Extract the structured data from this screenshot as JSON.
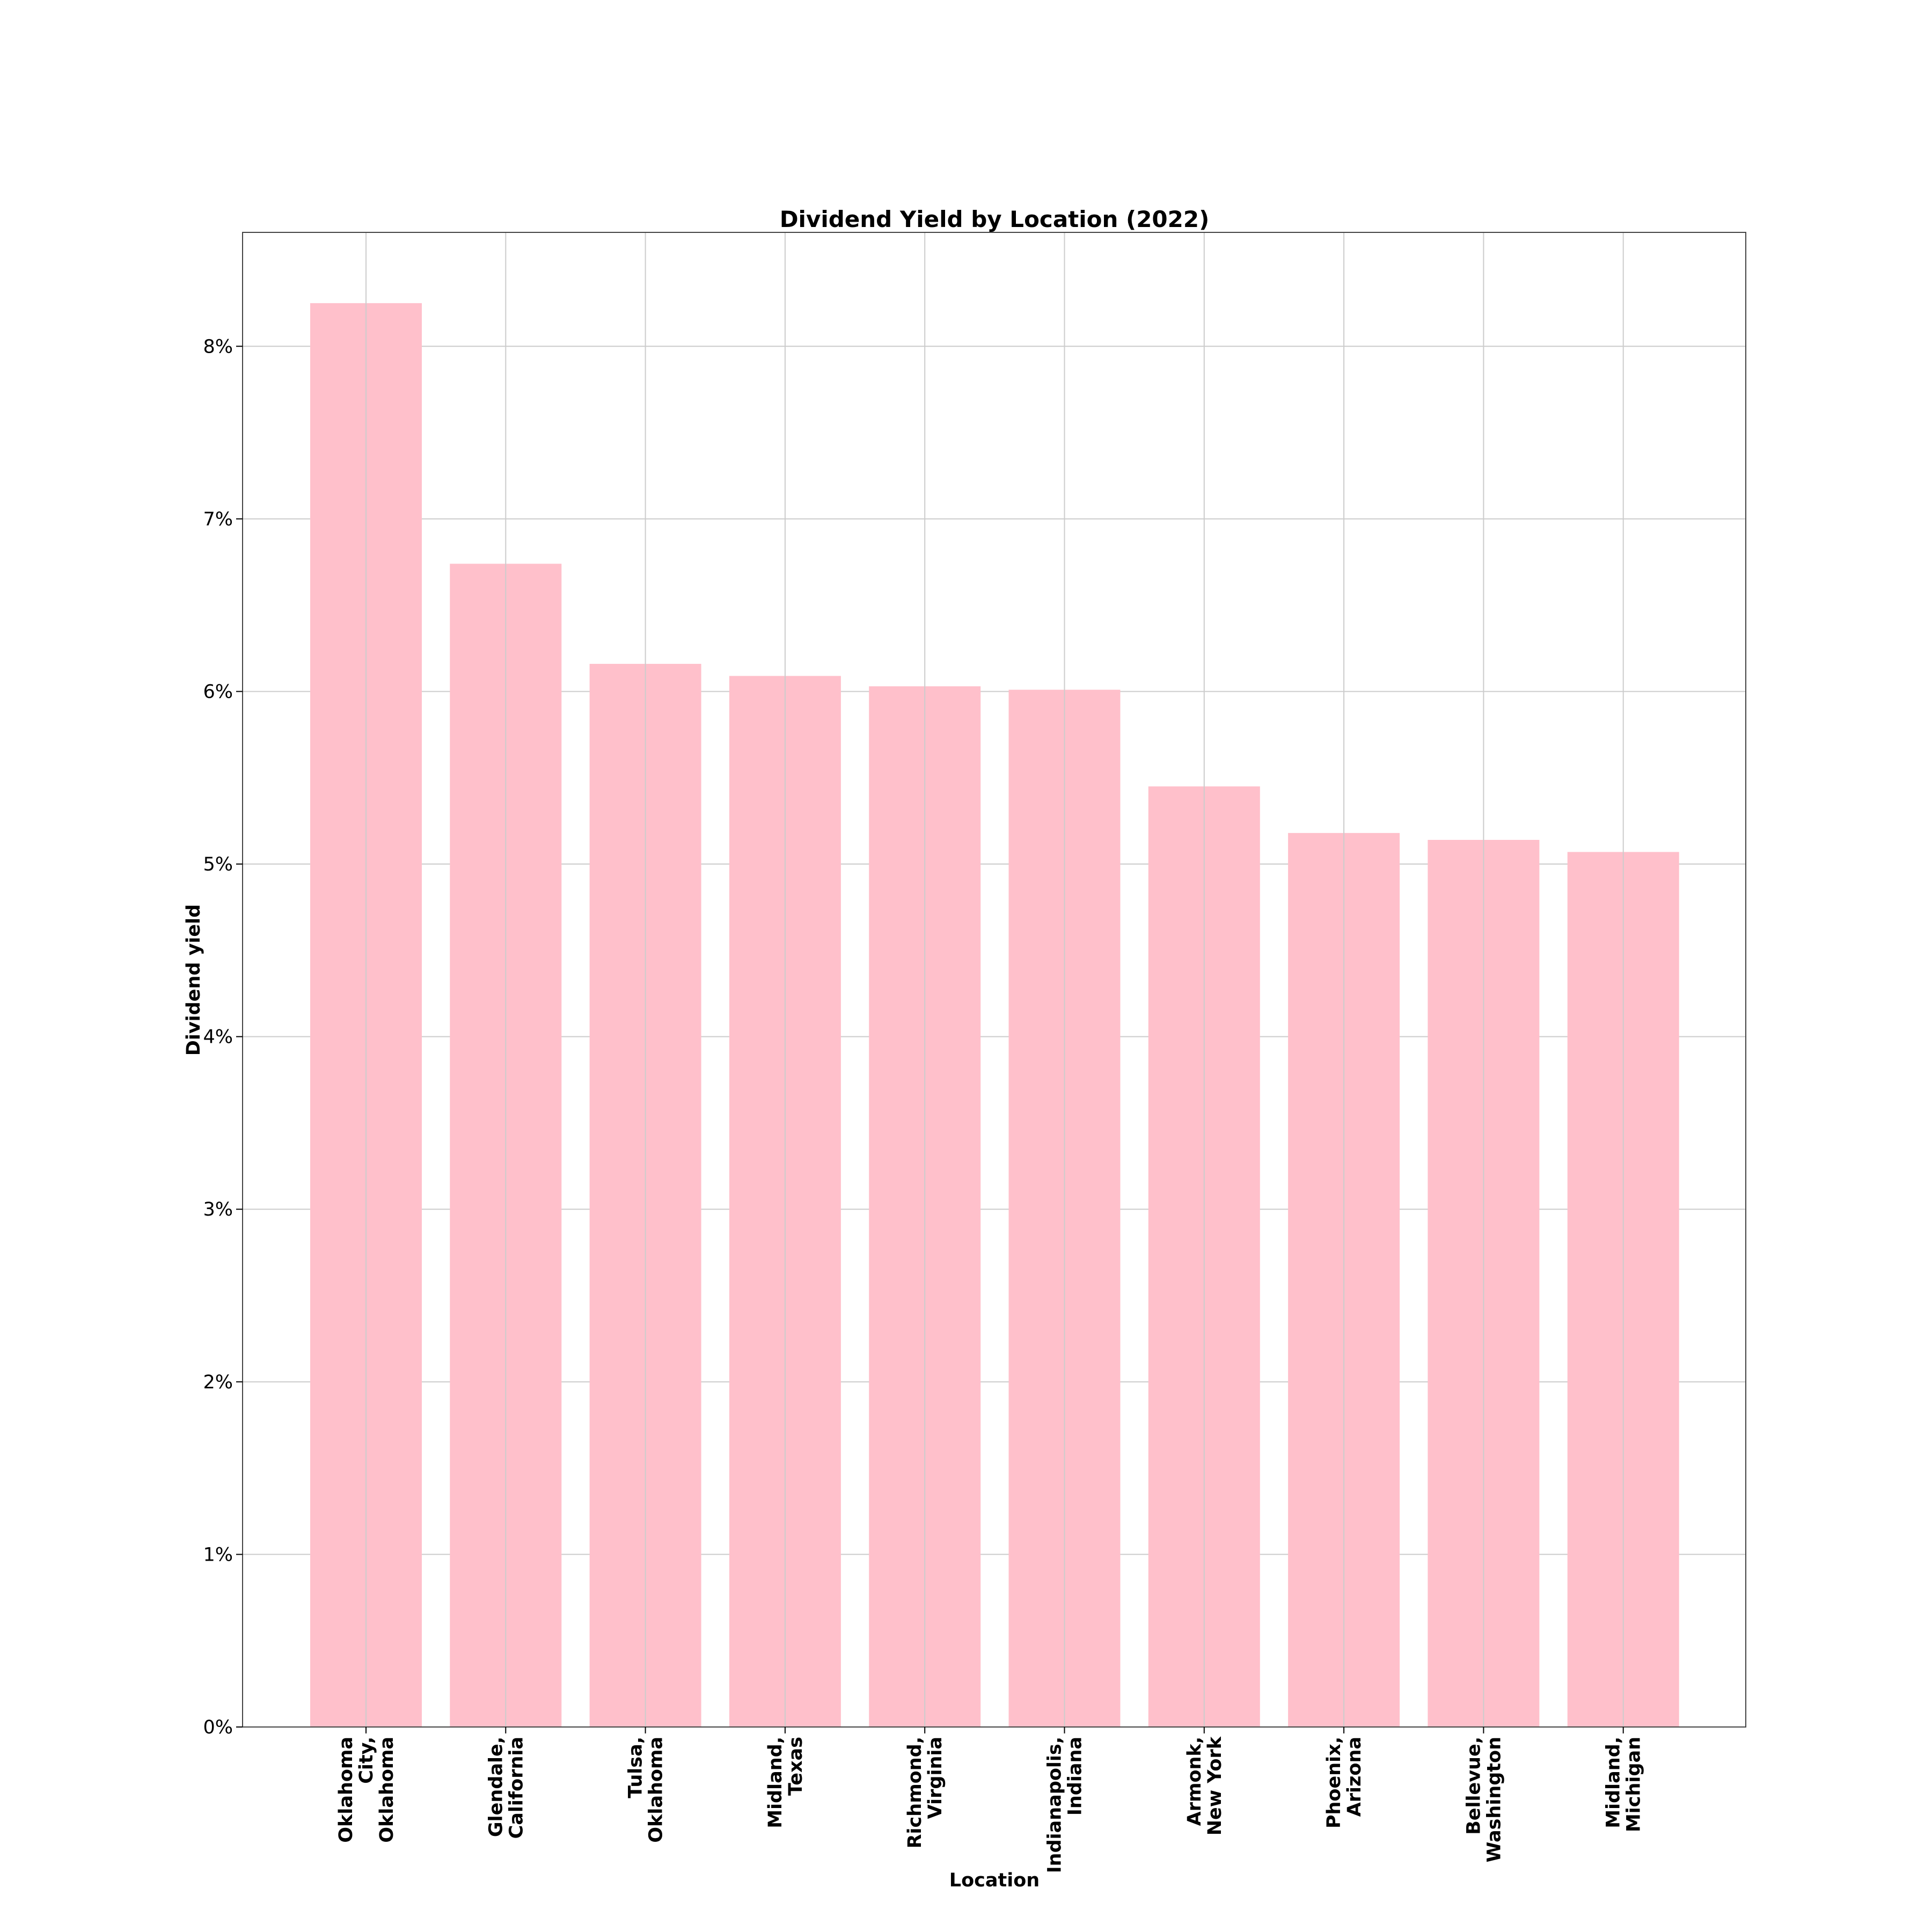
{
  "chart_data": {
    "type": "bar",
    "title": "Dividend Yield by Location (2022)",
    "xlabel": "Location",
    "ylabel": "Dividend yield",
    "categories": [
      [
        "Oklahoma",
        "City,",
        "Oklahoma"
      ],
      [
        "Glendale,",
        "California"
      ],
      [
        "Tulsa,",
        "Oklahoma"
      ],
      [
        "Midland,",
        "Texas"
      ],
      [
        "Richmond,",
        "Virginia"
      ],
      [
        "Indianapolis,",
        "Indiana"
      ],
      [
        "Armonk,",
        "New York"
      ],
      [
        "Phoenix,",
        "Arizona"
      ],
      [
        "Bellevue,",
        "Washington"
      ],
      [
        "Midland,",
        "Michigan"
      ]
    ],
    "values": [
      8.25,
      6.74,
      6.16,
      6.09,
      6.03,
      6.01,
      5.45,
      5.18,
      5.14,
      5.07
    ],
    "ylim": [
      0,
      8.66
    ],
    "yticks": [
      0,
      1,
      2,
      3,
      4,
      5,
      6,
      7,
      8
    ],
    "ytick_labels": [
      "0%",
      "1%",
      "2%",
      "3%",
      "4%",
      "5%",
      "6%",
      "7%",
      "8%"
    ],
    "grid": true,
    "colors": {
      "bar": "#ffc0cb",
      "grid": "#cccccc",
      "axis": "#444444"
    }
  }
}
